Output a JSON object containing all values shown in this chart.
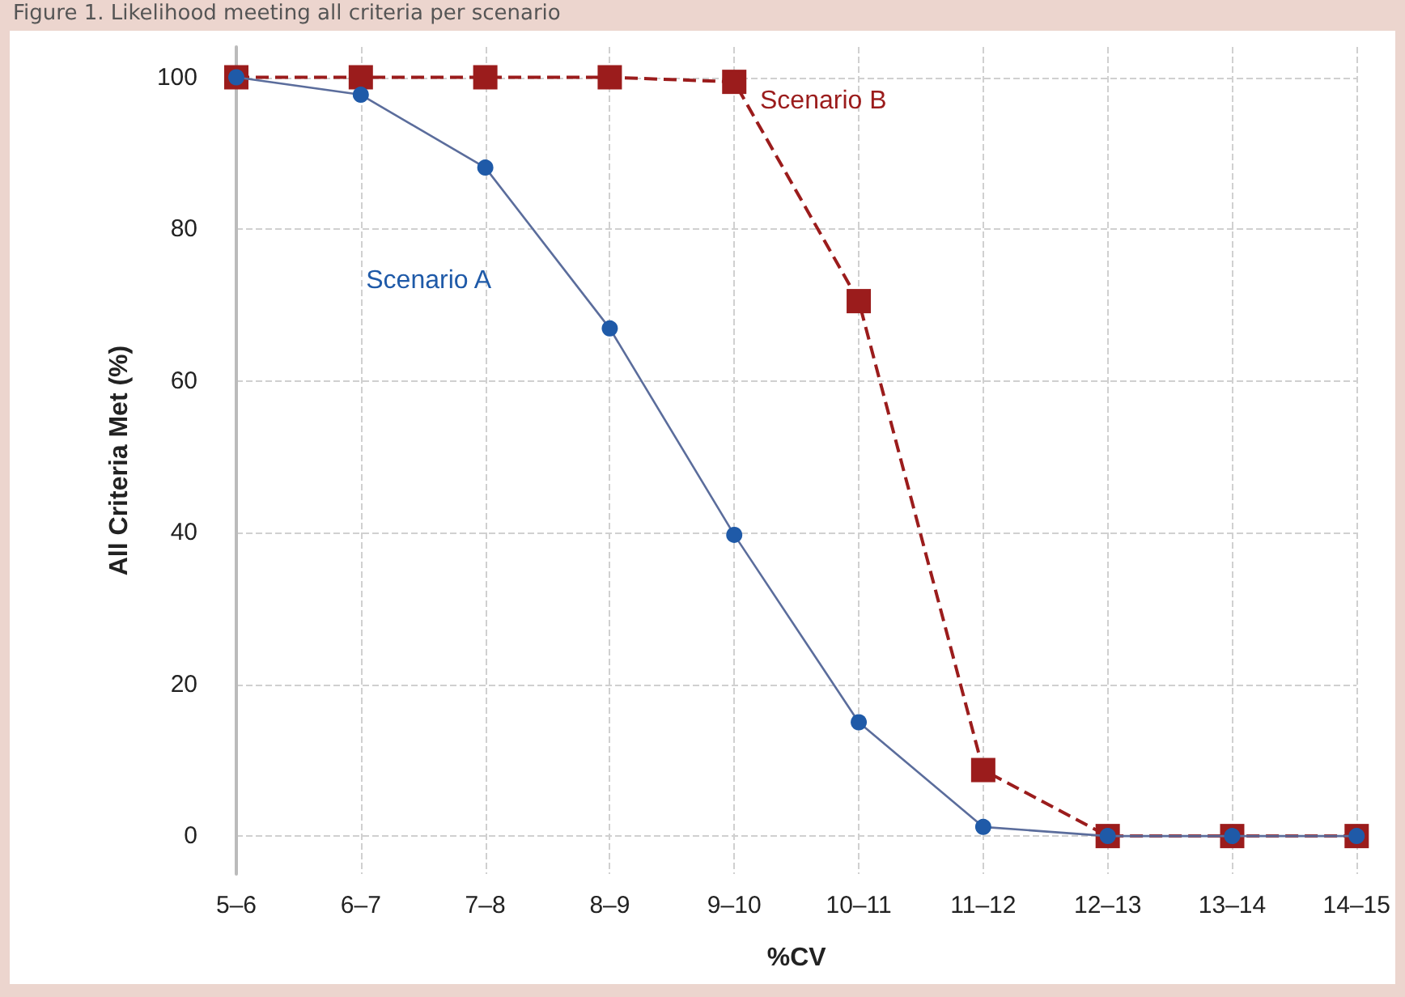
{
  "chart_data": {
    "type": "line",
    "title": "Figure 1. Likelihood meeting all criteria per scenario",
    "xlabel": "%CV",
    "ylabel": "All Criteria Met (%)",
    "categories": [
      "5–6",
      "6–7",
      "7–8",
      "8–9",
      "9–10",
      "10–11",
      "11–12",
      "12–13",
      "13–14",
      "14–15"
    ],
    "series": [
      {
        "name": "Scenario A",
        "color": "#1f5aa8",
        "marker": "circle",
        "line_style": "solid",
        "values": [
          100,
          97.7,
          88.1,
          66.9,
          39.7,
          15.0,
          1.2,
          0,
          0,
          0
        ]
      },
      {
        "name": "Scenario B",
        "color": "#9b1c1c",
        "marker": "square",
        "line_style": "dashed",
        "values": [
          100,
          100,
          100,
          100,
          99.4,
          70.5,
          8.7,
          0,
          0,
          0
        ]
      }
    ],
    "ylim": [
      -5,
      104
    ],
    "yticks": [
      0,
      20,
      40,
      60,
      80,
      100
    ],
    "grid": true,
    "legend": false
  }
}
